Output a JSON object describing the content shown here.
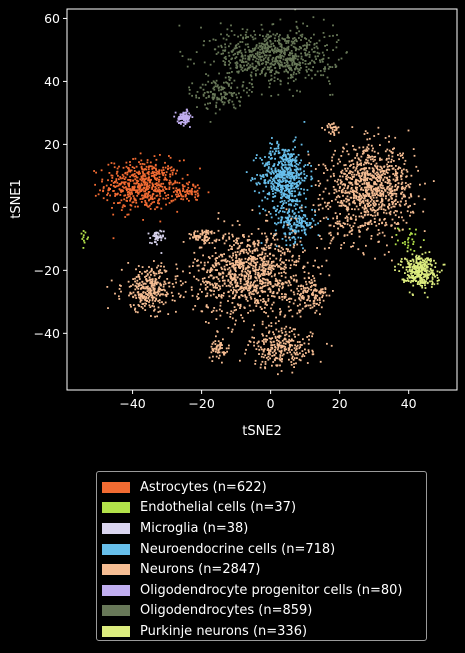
{
  "chart_data": {
    "type": "scatter",
    "title": "",
    "xlabel": "tSNE2",
    "ylabel": "tSNE1",
    "xlim": [
      -59,
      54
    ],
    "ylim": [
      -58,
      63
    ],
    "xticks": [
      -40,
      -20,
      0,
      20,
      40
    ],
    "yticks": [
      -40,
      -20,
      0,
      20,
      40,
      60
    ],
    "grid": false,
    "legend_placement": "bottom-center (outside)",
    "series": [
      {
        "name": "Astrocytes (n=622)",
        "color": "#f26b32",
        "count": 622,
        "clusters": [
          {
            "x": -37,
            "y": 7,
            "sx": 5.5,
            "sy": 4.0,
            "w": 0.9
          },
          {
            "x": -24,
            "y": 5,
            "sx": 2.0,
            "sy": 1.5,
            "w": 0.1
          }
        ]
      },
      {
        "name": "Endothelial cells (n=37)",
        "color": "#b3e24a",
        "count": 37,
        "clusters": [
          {
            "x": -54,
            "y": -9,
            "sx": 0.5,
            "sy": 1.0,
            "w": 0.3
          },
          {
            "x": 40,
            "y": -10,
            "sx": 1.5,
            "sy": 2.0,
            "w": 0.7
          }
        ]
      },
      {
        "name": "Microglia (n=38)",
        "color": "#dad5ef",
        "count": 38,
        "clusters": [
          {
            "x": -33,
            "y": -10,
            "sx": 1.0,
            "sy": 1.5,
            "w": 1.0
          }
        ]
      },
      {
        "name": "Neuroendocrine cells (n=718)",
        "color": "#67bfeb",
        "count": 718,
        "clusters": [
          {
            "x": 4,
            "y": 10,
            "sx": 3.5,
            "sy": 5.0,
            "w": 0.75
          },
          {
            "x": 7,
            "y": -5,
            "sx": 3.0,
            "sy": 3.0,
            "w": 0.25
          }
        ]
      },
      {
        "name": "Neurons (n=2847)",
        "color": "#f6bd93",
        "count": 2847,
        "clusters": [
          {
            "x": -6,
            "y": -21,
            "sx": 8.0,
            "sy": 7.0,
            "w": 0.36
          },
          {
            "x": -35,
            "y": -26,
            "sx": 4.0,
            "sy": 3.5,
            "w": 0.11
          },
          {
            "x": 29,
            "y": 6,
            "sx": 6.0,
            "sy": 6.5,
            "w": 0.33
          },
          {
            "x": 3,
            "y": -45,
            "sx": 4.5,
            "sy": 3.0,
            "w": 0.09
          },
          {
            "x": -15,
            "y": -45,
            "sx": 1.5,
            "sy": 1.5,
            "w": 0.02
          },
          {
            "x": 18,
            "y": 25,
            "sx": 1.0,
            "sy": 1.0,
            "w": 0.01
          },
          {
            "x": 12,
            "y": -28,
            "sx": 2.5,
            "sy": 3.0,
            "w": 0.04
          },
          {
            "x": -20,
            "y": -9,
            "sx": 2.0,
            "sy": 1.0,
            "w": 0.02
          },
          {
            "x": 20,
            "y": -5,
            "sx": 3.0,
            "sy": 4.0,
            "w": 0.02
          }
        ]
      },
      {
        "name": "Oligodendrocyte progenitor cells (n=80)",
        "color": "#c1aef0",
        "count": 80,
        "clusters": [
          {
            "x": -25,
            "y": 28.5,
            "sx": 1.0,
            "sy": 1.0,
            "w": 1.0
          }
        ]
      },
      {
        "name": "Oligodendrocytes (n=859)",
        "color": "#687858",
        "count": 859,
        "clusters": [
          {
            "x": 1,
            "y": 48,
            "sx": 8.5,
            "sy": 4.5,
            "w": 0.85
          },
          {
            "x": -15,
            "y": 36,
            "sx": 3.5,
            "sy": 2.5,
            "w": 0.15
          }
        ]
      },
      {
        "name": "Purkinje neurons (n=336)",
        "color": "#dcec7e",
        "count": 336,
        "clusters": [
          {
            "x": 43,
            "y": -20,
            "sx": 2.5,
            "sy": 2.5,
            "w": 1.0
          }
        ]
      }
    ]
  }
}
